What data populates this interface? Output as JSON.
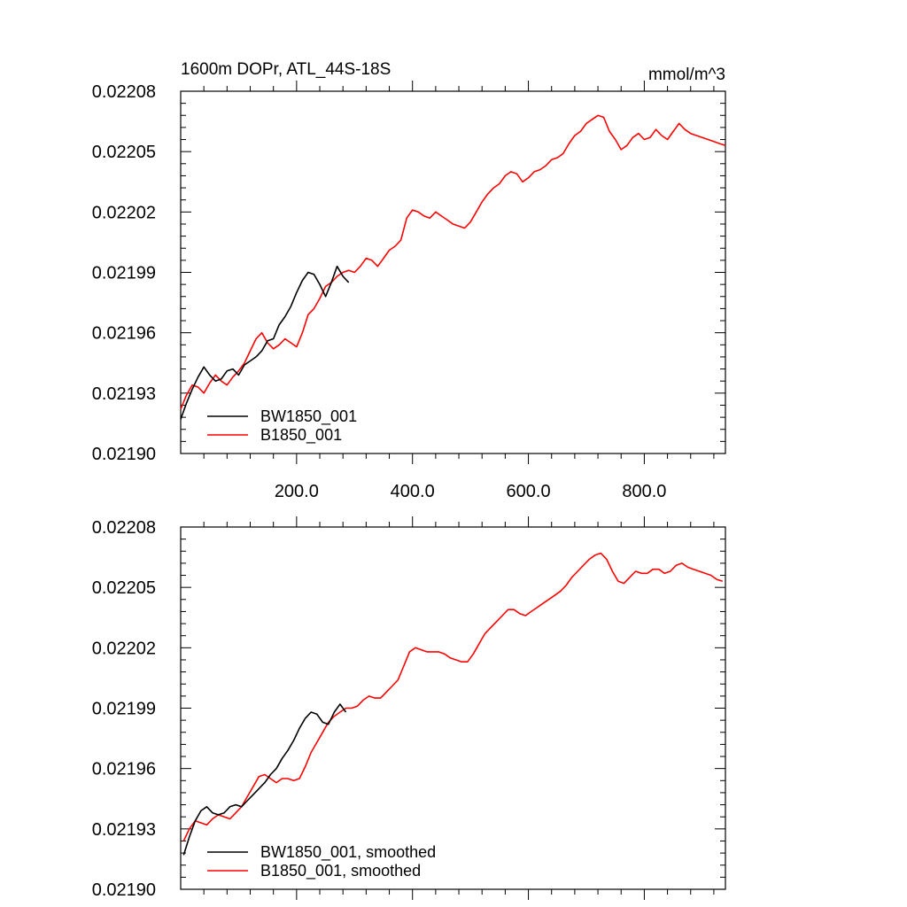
{
  "chart_data": [
    {
      "type": "line",
      "title": "1600m DOPr, ATL_44S-18S",
      "units": "mmol/m^3",
      "xlim": [
        0,
        940
      ],
      "ylim": [
        0.0219,
        0.02208
      ],
      "x_ticks": [
        200,
        400,
        600,
        800
      ],
      "x_tick_labels": [
        "200.0",
        "400.0",
        "600.0",
        "800.0"
      ],
      "y_ticks": [
        0.0219,
        0.02193,
        0.02196,
        0.02199,
        0.02202,
        0.02205,
        0.02208
      ],
      "y_tick_labels": [
        "0.02190",
        "0.02193",
        "0.02196",
        "0.02199",
        "0.02202",
        "0.02205",
        "0.02208"
      ],
      "legend_position": "bottom-left",
      "series": [
        {
          "name": "BW1850_001",
          "color": "#000000",
          "x": [
            0,
            10,
            20,
            30,
            40,
            50,
            60,
            70,
            80,
            90,
            100,
            110,
            120,
            130,
            140,
            150,
            160,
            170,
            180,
            190,
            200,
            210,
            220,
            230,
            240,
            250,
            260,
            270,
            280,
            290
          ],
          "y": [
            0.021917,
            0.021925,
            0.021932,
            0.021938,
            0.021943,
            0.021939,
            0.021936,
            0.021937,
            0.021941,
            0.021942,
            0.021939,
            0.021944,
            0.021946,
            0.021948,
            0.021951,
            0.021956,
            0.021957,
            0.021964,
            0.021968,
            0.021973,
            0.02198,
            0.021986,
            0.02199,
            0.021989,
            0.021984,
            0.021978,
            0.021985,
            0.021993,
            0.021988,
            0.021985
          ]
        },
        {
          "name": "B1850_001",
          "color": "#ff0000",
          "x": [
            0,
            10,
            20,
            30,
            40,
            50,
            60,
            70,
            80,
            90,
            100,
            110,
            120,
            130,
            140,
            150,
            160,
            170,
            180,
            190,
            200,
            210,
            220,
            230,
            240,
            250,
            260,
            270,
            280,
            290,
            300,
            310,
            320,
            330,
            340,
            350,
            360,
            370,
            380,
            390,
            400,
            410,
            420,
            430,
            440,
            450,
            460,
            470,
            480,
            490,
            500,
            510,
            520,
            530,
            540,
            550,
            560,
            570,
            580,
            590,
            600,
            610,
            620,
            630,
            640,
            650,
            660,
            670,
            680,
            690,
            700,
            710,
            720,
            730,
            740,
            750,
            760,
            770,
            780,
            790,
            800,
            810,
            820,
            830,
            840,
            850,
            860,
            870,
            880,
            890,
            900,
            910,
            920,
            930,
            940
          ],
          "y": [
            0.021922,
            0.021929,
            0.021934,
            0.021933,
            0.02193,
            0.021935,
            0.021939,
            0.021936,
            0.021934,
            0.021938,
            0.021941,
            0.021945,
            0.021951,
            0.021957,
            0.02196,
            0.021955,
            0.021952,
            0.021954,
            0.021957,
            0.021955,
            0.021953,
            0.02196,
            0.021969,
            0.021972,
            0.021977,
            0.021983,
            0.021985,
            0.021988,
            0.02199,
            0.021991,
            0.02199,
            0.021993,
            0.021997,
            0.021996,
            0.021993,
            0.021997,
            0.022001,
            0.022003,
            0.022006,
            0.022017,
            0.022021,
            0.02202,
            0.022018,
            0.022017,
            0.02202,
            0.022018,
            0.022016,
            0.022014,
            0.022013,
            0.022012,
            0.022015,
            0.02202,
            0.022025,
            0.022029,
            0.022032,
            0.022034,
            0.022038,
            0.02204,
            0.022039,
            0.022035,
            0.022037,
            0.02204,
            0.022041,
            0.022043,
            0.022046,
            0.022047,
            0.022049,
            0.022054,
            0.022058,
            0.02206,
            0.022064,
            0.022066,
            0.022068,
            0.022067,
            0.02206,
            0.022056,
            0.022051,
            0.022053,
            0.022057,
            0.022059,
            0.022056,
            0.022057,
            0.022061,
            0.022058,
            0.022056,
            0.02206,
            0.022064,
            0.022061,
            0.022059,
            0.022058,
            0.022057,
            0.022056,
            0.022055,
            0.022054,
            0.022053
          ]
        }
      ]
    },
    {
      "type": "line",
      "xlim": [
        0,
        940
      ],
      "ylim": [
        0.0219,
        0.02208
      ],
      "x_ticks": [
        200,
        400,
        600,
        800
      ],
      "y_ticks": [
        0.0219,
        0.02193,
        0.02196,
        0.02199,
        0.02202,
        0.02205,
        0.02208
      ],
      "y_tick_labels": [
        "0.02190",
        "0.02193",
        "0.02196",
        "0.02199",
        "0.02202",
        "0.02205",
        "0.02208"
      ],
      "legend_position": "bottom-left",
      "series": [
        {
          "name": "BW1850_001, smoothed",
          "color": "#000000",
          "x": [
            5,
            15,
            25,
            35,
            45,
            55,
            65,
            75,
            85,
            95,
            105,
            115,
            125,
            135,
            145,
            155,
            165,
            175,
            185,
            195,
            205,
            215,
            225,
            235,
            245,
            255,
            265,
            275,
            285
          ],
          "y": [
            0.021917,
            0.021926,
            0.021934,
            0.021939,
            0.021941,
            0.021938,
            0.021937,
            0.021938,
            0.021941,
            0.021942,
            0.021941,
            0.021944,
            0.021947,
            0.02195,
            0.021953,
            0.021957,
            0.02196,
            0.021965,
            0.021969,
            0.021974,
            0.02198,
            0.021985,
            0.021988,
            0.021987,
            0.021983,
            0.021982,
            0.021988,
            0.021992,
            0.021988
          ]
        },
        {
          "name": "B1850_001, smoothed",
          "color": "#ff0000",
          "x": [
            5,
            15,
            25,
            35,
            45,
            55,
            65,
            75,
            85,
            95,
            105,
            115,
            125,
            135,
            145,
            155,
            165,
            175,
            185,
            195,
            205,
            215,
            225,
            235,
            245,
            255,
            265,
            275,
            285,
            295,
            305,
            315,
            325,
            335,
            345,
            355,
            365,
            375,
            385,
            395,
            405,
            415,
            425,
            435,
            445,
            455,
            465,
            475,
            485,
            495,
            505,
            515,
            525,
            535,
            545,
            555,
            565,
            575,
            585,
            595,
            605,
            615,
            625,
            635,
            645,
            655,
            665,
            675,
            685,
            695,
            705,
            715,
            725,
            735,
            745,
            755,
            765,
            775,
            785,
            795,
            805,
            815,
            825,
            835,
            845,
            855,
            865,
            875,
            885,
            895,
            905,
            915,
            925,
            935
          ],
          "y": [
            0.021924,
            0.02193,
            0.021934,
            0.021933,
            0.021932,
            0.021935,
            0.021937,
            0.021936,
            0.021935,
            0.021938,
            0.021941,
            0.021946,
            0.021951,
            0.021956,
            0.021957,
            0.021955,
            0.021953,
            0.021955,
            0.021955,
            0.021954,
            0.021955,
            0.021961,
            0.021968,
            0.021973,
            0.021978,
            0.021983,
            0.021986,
            0.021988,
            0.02199,
            0.02199,
            0.021991,
            0.021994,
            0.021996,
            0.021995,
            0.021995,
            0.021998,
            0.022001,
            0.022004,
            0.022011,
            0.022018,
            0.02202,
            0.022019,
            0.022018,
            0.022018,
            0.022018,
            0.022017,
            0.022015,
            0.022014,
            0.022013,
            0.022013,
            0.022017,
            0.022022,
            0.022027,
            0.02203,
            0.022033,
            0.022036,
            0.022039,
            0.022039,
            0.022037,
            0.022036,
            0.022038,
            0.02204,
            0.022042,
            0.022044,
            0.022046,
            0.022048,
            0.022051,
            0.022055,
            0.022058,
            0.022061,
            0.022064,
            0.022066,
            0.022067,
            0.022064,
            0.022058,
            0.022053,
            0.022052,
            0.022055,
            0.022058,
            0.022057,
            0.022057,
            0.022059,
            0.022059,
            0.022057,
            0.022058,
            0.022061,
            0.022062,
            0.02206,
            0.022059,
            0.022058,
            0.022057,
            0.022056,
            0.022054,
            0.022053
          ]
        }
      ]
    }
  ]
}
